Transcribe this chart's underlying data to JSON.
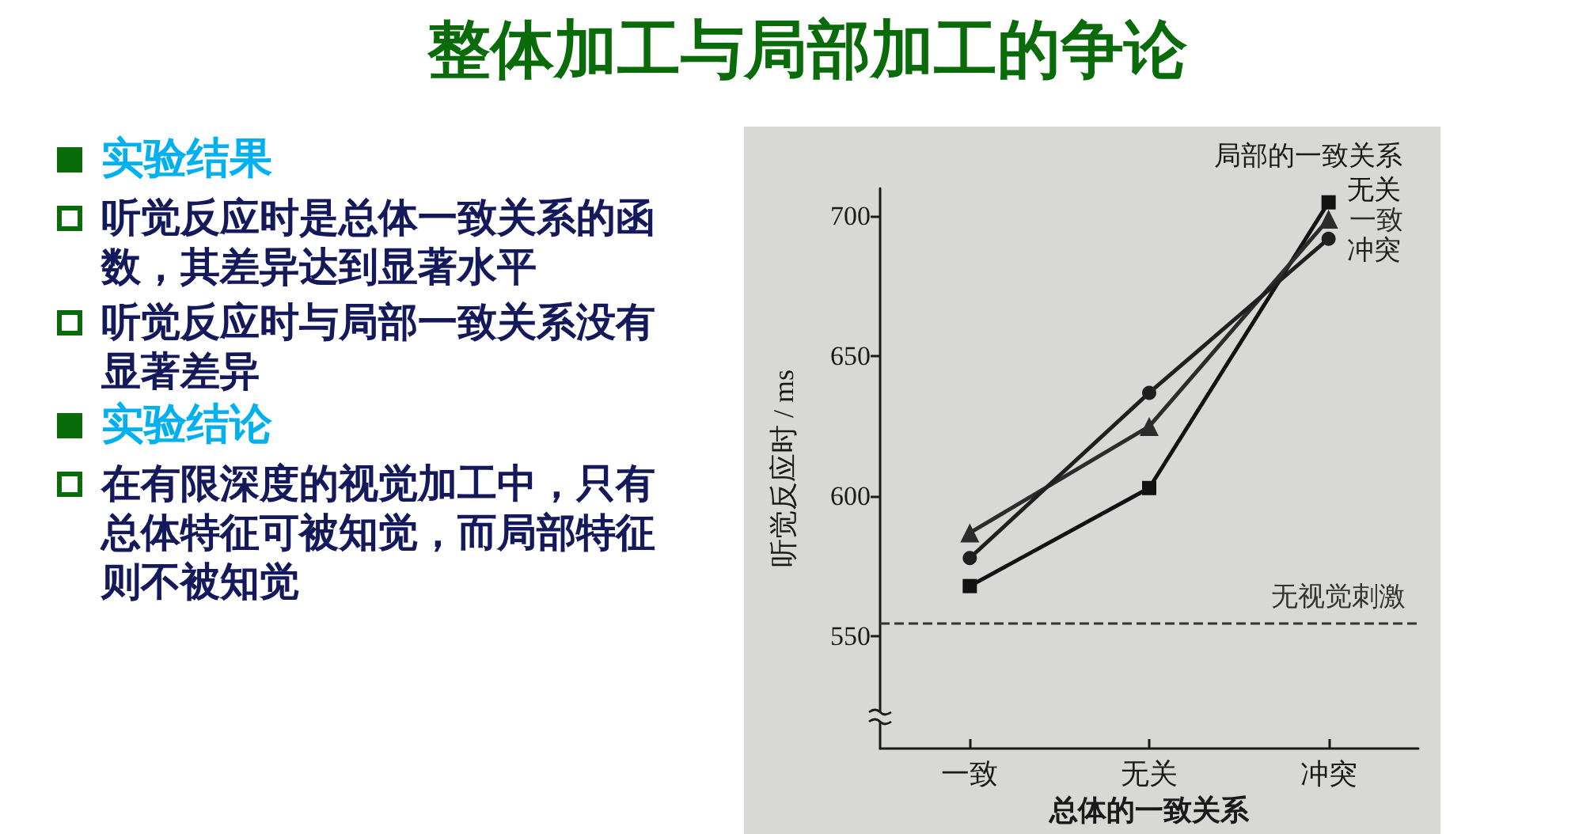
{
  "chart_data": {
    "type": "line",
    "title": "整体加工与局部加工的争论",
    "xlabel": "总体的一致关系",
    "ylabel": "听觉反应时 / ms",
    "legend_title": "局部的一致关系",
    "categories": [
      "一致",
      "无关",
      "冲突"
    ],
    "series": [
      {
        "name": "无关",
        "color": "#121212",
        "marker": "square",
        "values": [
          568,
          603,
          705
        ]
      },
      {
        "name": "一致",
        "color": "#2c2c2c",
        "marker": "triangle",
        "values": [
          587,
          625,
          699
        ]
      },
      {
        "name": "冲突",
        "color": "#1f1f1f",
        "marker": "circle",
        "values": [
          578,
          637,
          692
        ]
      }
    ],
    "ylim": [
      510,
      710
    ],
    "yticks": [
      550,
      600,
      650,
      700
    ],
    "ref_lines": [
      {
        "axis": "y",
        "value": 555,
        "label": "无视觉刺激",
        "color": "#333333",
        "line_style": "dashed"
      }
    ],
    "grid": false,
    "legend": false,
    "annotations": [
      "实验结果",
      "听觉反应时是总体一致关系的函数，其差异达到显著水平",
      "听觉反应时与局部一致关系没有显著差异",
      "实验结论",
      "在有限深度的视觉加工中，只有总体特征可被知觉，而局部特征则不被知觉"
    ]
  }
}
